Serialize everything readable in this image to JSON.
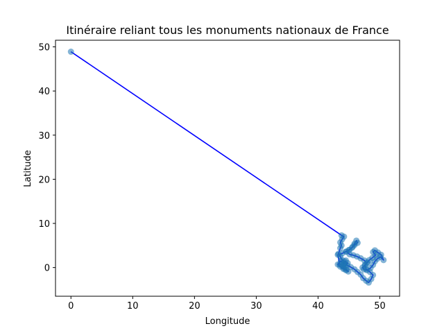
{
  "chart_data": {
    "type": "line",
    "title": "Itinéraire reliant tous les monuments nationaux de France",
    "xlabel": "Longitude",
    "ylabel": "Latitude",
    "xlim": [
      -2.5,
      53.2
    ],
    "ylim": [
      -6.5,
      51.5
    ],
    "xticks": [
      0,
      10,
      20,
      30,
      40,
      50
    ],
    "yticks": [
      0,
      10,
      20,
      30,
      40,
      50
    ],
    "grid": false,
    "legend": "none",
    "colors": {
      "route": "#0000ff",
      "points": "#1f77b4"
    },
    "series": [
      {
        "values_note": "",
        "x": [
          0.0,
          43.8,
          44.2,
          43.9,
          43.6,
          43.8,
          43.6,
          43.3,
          43.6,
          43.9,
          44.3,
          44.8,
          44.4,
          44.0,
          43.5,
          43.2,
          43.9,
          44.5,
          45.1,
          45.6,
          45.9,
          46.2,
          46.4,
          45.9,
          45.5,
          45.0,
          44.6,
          45.1,
          45.7,
          46.3,
          46.9,
          47.5,
          47.9,
          47.6,
          47.2,
          47.4,
          47.9,
          48.5,
          48.9,
          49.2,
          49.6,
          50.1,
          50.6,
          50.2,
          49.7,
          49.2,
          48.9,
          49.3,
          48.8,
          48.3,
          48.0,
          47.6,
          47.8,
          48.4,
          48.9,
          48.6,
          48.2,
          47.8,
          47.3,
          46.9,
          46.4,
          45.9,
          45.3,
          44.7,
          44.2,
          43.7,
          43.2,
          43.6,
          44.1,
          44.5,
          44.9,
          44.6,
          44.2,
          43.9,
          44.1,
          44.5
        ],
        "y": [
          48.9,
          7.3,
          7.0,
          6.4,
          5.7,
          5.0,
          4.4,
          3.1,
          2.5,
          1.7,
          1.4,
          1.0,
          0.3,
          0.5,
          0.7,
          2.9,
          3.2,
          3.6,
          4.0,
          4.7,
          5.4,
          6.1,
          5.6,
          5.1,
          4.5,
          4.0,
          3.6,
          3.0,
          2.8,
          2.5,
          2.1,
          1.6,
          1.0,
          0.5,
          0.0,
          -0.4,
          -0.6,
          -0.1,
          0.6,
          1.4,
          2.0,
          2.4,
          1.7,
          2.9,
          3.4,
          3.9,
          3.5,
          2.8,
          2.2,
          1.7,
          1.2,
          0.6,
          -0.4,
          -1.0,
          -1.7,
          -2.6,
          -3.4,
          -3.0,
          -2.4,
          -1.6,
          -1.0,
          -0.4,
          0.1,
          0.5,
          0.9,
          1.5,
          0.7,
          0.2,
          -0.3,
          -0.6,
          -0.9,
          -0.5,
          -0.1,
          0.3,
          0.9,
          1.6
        ]
      }
    ]
  }
}
